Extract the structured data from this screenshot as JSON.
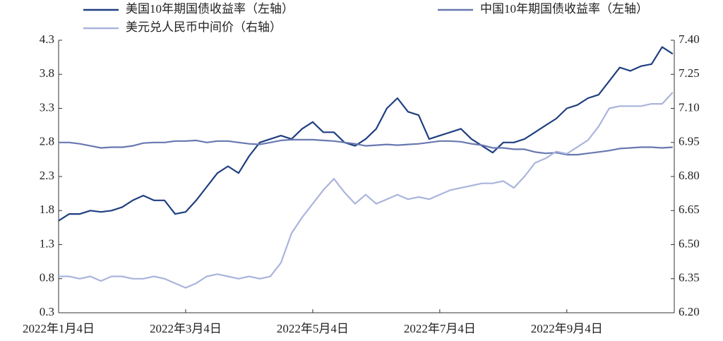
{
  "chart_data": {
    "type": "line",
    "categories": [
      "2022年1月4日",
      null,
      null,
      null,
      null,
      null,
      null,
      null,
      null,
      null,
      null,
      null,
      "2022年3月4日",
      null,
      null,
      null,
      null,
      null,
      null,
      null,
      null,
      null,
      null,
      null,
      "2022年5月4日",
      null,
      null,
      null,
      null,
      null,
      null,
      null,
      null,
      null,
      null,
      null,
      "2022年7月4日",
      null,
      null,
      null,
      null,
      null,
      null,
      null,
      null,
      null,
      null,
      null,
      "2022年9月4日",
      null,
      null,
      null,
      null,
      null,
      null,
      null,
      null,
      null,
      null
    ],
    "series": [
      {
        "name": "美国10年期国债收益率（左轴）",
        "color": "#1f3f80",
        "values": [
          1.65,
          1.75,
          1.75,
          1.8,
          1.78,
          1.8,
          1.85,
          1.95,
          2.02,
          1.95,
          1.95,
          1.75,
          1.78,
          1.95,
          2.15,
          2.35,
          2.45,
          2.35,
          2.6,
          2.8,
          2.85,
          2.9,
          2.85,
          3.0,
          3.1,
          2.95,
          2.95,
          2.8,
          2.75,
          2.85,
          3.0,
          3.3,
          3.45,
          3.25,
          3.2,
          2.85,
          2.9,
          2.95,
          3.0,
          2.85,
          2.75,
          2.65,
          2.8,
          2.8,
          2.85,
          2.95,
          3.05,
          3.15,
          3.3,
          3.35,
          3.45,
          3.5,
          3.7,
          3.9,
          3.85,
          3.92,
          3.95,
          4.2,
          4.1
        ]
      },
      {
        "name": "中国10年期国债收益率（左轴）",
        "color": "#6878b0",
        "values": [
          2.8,
          2.8,
          2.78,
          2.75,
          2.72,
          2.73,
          2.73,
          2.75,
          2.79,
          2.8,
          2.8,
          2.82,
          2.82,
          2.83,
          2.8,
          2.82,
          2.82,
          2.8,
          2.78,
          2.77,
          2.8,
          2.83,
          2.84,
          2.84,
          2.84,
          2.83,
          2.82,
          2.8,
          2.78,
          2.75,
          2.76,
          2.77,
          2.76,
          2.77,
          2.78,
          2.8,
          2.82,
          2.82,
          2.81,
          2.78,
          2.76,
          2.72,
          2.72,
          2.7,
          2.7,
          2.66,
          2.64,
          2.65,
          2.62,
          2.62,
          2.64,
          2.66,
          2.68,
          2.71,
          2.72,
          2.73,
          2.73,
          2.72,
          2.73
        ]
      },
      {
        "name": "美元兑人民币中间价（右轴）",
        "color": "#aab4dc",
        "axis": "y2",
        "values": [
          6.36,
          6.36,
          6.35,
          6.36,
          6.34,
          6.36,
          6.36,
          6.35,
          6.35,
          6.36,
          6.35,
          6.33,
          6.31,
          6.33,
          6.36,
          6.37,
          6.36,
          6.35,
          6.36,
          6.35,
          6.36,
          6.42,
          6.55,
          6.62,
          6.68,
          6.74,
          6.79,
          6.73,
          6.68,
          6.72,
          6.68,
          6.7,
          6.72,
          6.7,
          6.71,
          6.7,
          6.72,
          6.74,
          6.75,
          6.76,
          6.77,
          6.77,
          6.78,
          6.75,
          6.8,
          6.86,
          6.88,
          6.91,
          6.9,
          6.93,
          6.96,
          7.02,
          7.1,
          7.11,
          7.11,
          7.11,
          7.12,
          7.12,
          7.17
        ]
      }
    ],
    "ylim": [
      0.3,
      4.3
    ],
    "yticks": [
      0.3,
      0.8,
      1.3,
      1.8,
      2.3,
      2.8,
      3.3,
      3.8,
      4.3
    ],
    "y2lim": [
      6.2,
      7.4
    ],
    "y2ticks": [
      {
        "value": 6.2,
        "label": "6.20"
      },
      6.35,
      {
        "value": 6.5,
        "label": "6.50"
      },
      6.65,
      {
        "value": 6.8,
        "label": "6.80"
      },
      6.95,
      {
        "value": 7.1,
        "label": "7.10"
      },
      7.25,
      {
        "value": 7.4,
        "label": "7.40"
      }
    ],
    "grid": false,
    "legend": "top"
  }
}
